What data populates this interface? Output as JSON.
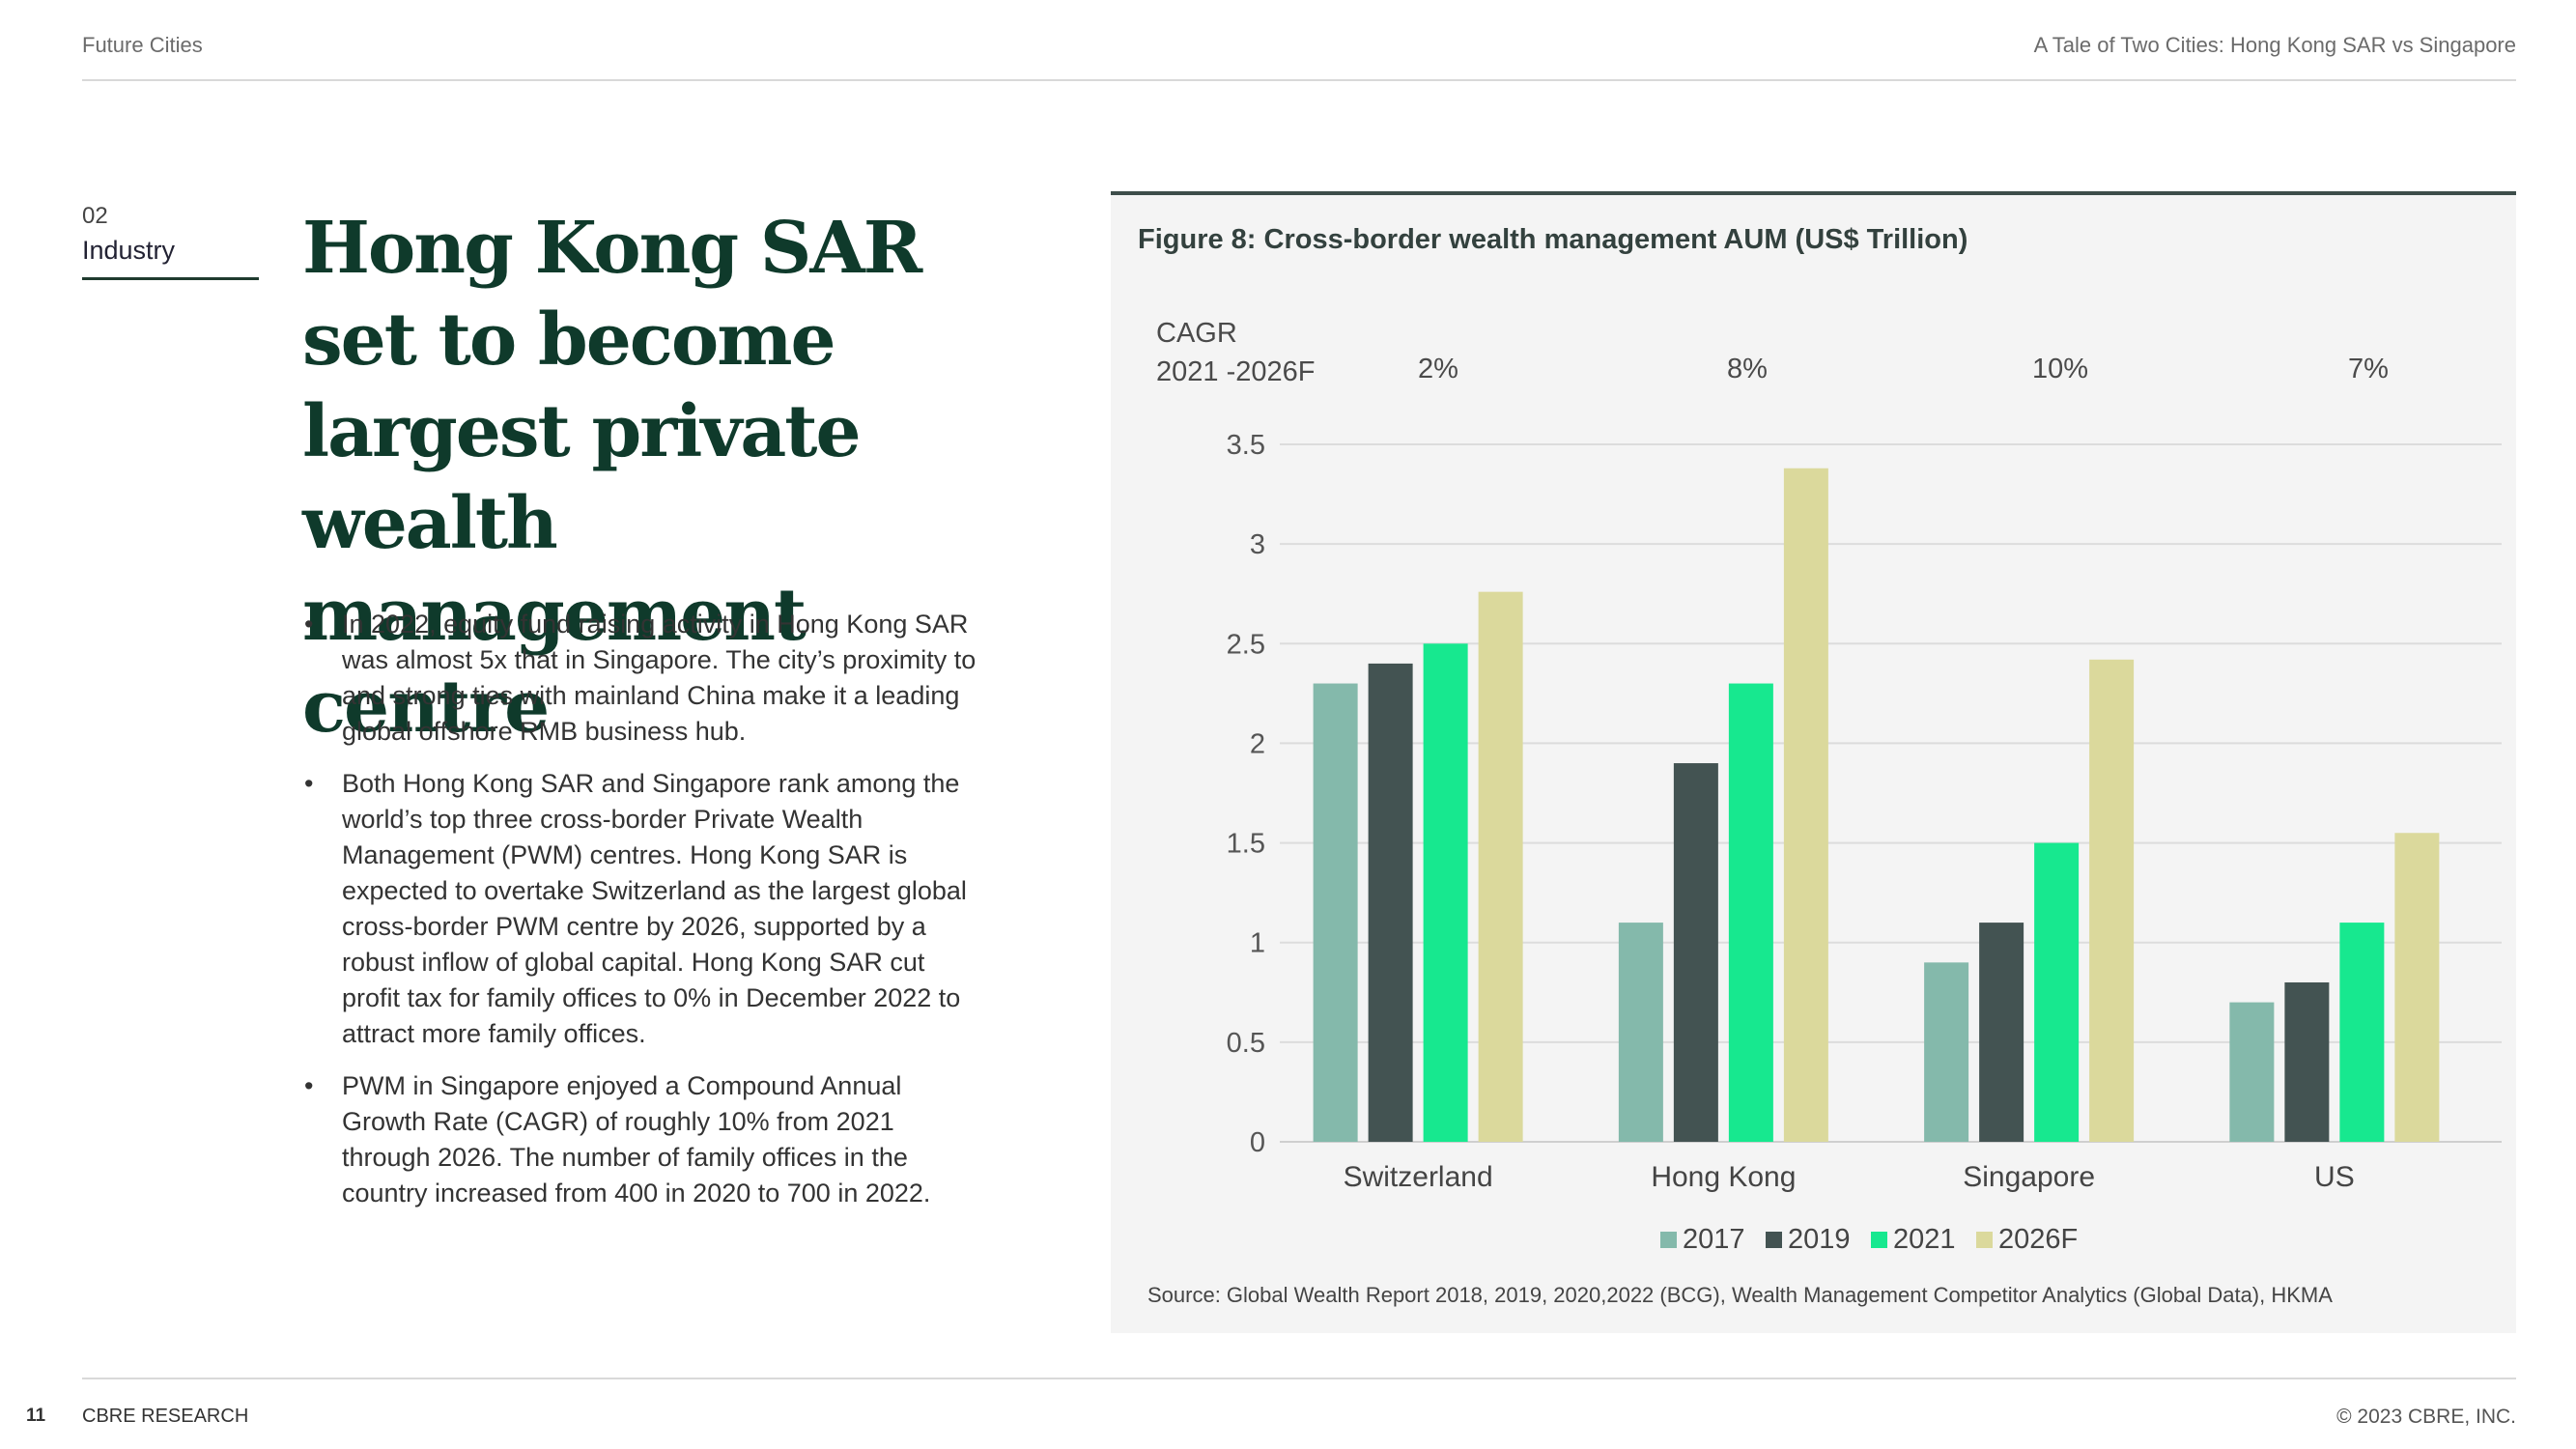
{
  "header": {
    "left": "Future Cities",
    "right": "A Tale of Two Cities: Hong Kong SAR vs Singapore"
  },
  "section": {
    "number": "02",
    "name": "Industry"
  },
  "title": "Hong Kong SAR set to become largest private wealth management centre",
  "bullets": [
    "In 2022, equity fund raising activity in Hong Kong SAR was almost 5x that in Singapore. The city’s proximity to and strong ties with mainland China make it a leading global offshore RMB business hub.",
    "Both Hong Kong SAR and Singapore rank among the world’s top three cross-border Private Wealth Management (PWM) centres. Hong Kong SAR is expected to overtake Switzerland as the largest global cross-border PWM centre by 2026, supported by a robust inflow of global capital. Hong Kong SAR cut profit tax for family offices to 0% in December 2022 to attract more family offices.",
    "PWM in Singapore enjoyed a Compound Annual Growth Rate (CAGR) of roughly 10% from 2021 through 2026. The number of family offices in the country increased from 400 in 2020 to 700 in 2022."
  ],
  "figure": {
    "title": "Figure 8: Cross-border wealth management AUM (US$ Trillion)",
    "cagr_label_line1": "CAGR",
    "cagr_label_line2": "2021 -2026F",
    "cagr_values": [
      "2%",
      "8%",
      "10%",
      "7%"
    ],
    "source": "Source: Global Wealth Report 2018, 2019, 2020,2022 (BCG), Wealth Management Competitor Analytics (Global Data), HKMA"
  },
  "chart_data": {
    "type": "bar",
    "categories": [
      "Switzerland",
      "Hong Kong",
      "Singapore",
      "US"
    ],
    "series": [
      {
        "name": "2017",
        "values": [
          2.3,
          1.1,
          0.9,
          0.7
        ]
      },
      {
        "name": "2019",
        "values": [
          2.4,
          1.9,
          1.1,
          0.8
        ]
      },
      {
        "name": "2021",
        "values": [
          2.5,
          2.3,
          1.5,
          1.1
        ]
      },
      {
        "name": "2026F",
        "values": [
          2.76,
          3.38,
          2.42,
          1.55
        ]
      }
    ],
    "ylim": [
      0,
      3.5
    ],
    "yticks": [
      "0",
      "0.5",
      "1",
      "1.5",
      "2",
      "2.5",
      "3",
      "3.5"
    ],
    "ytick_values": [
      0,
      0.5,
      1,
      1.5,
      2,
      2.5,
      3,
      3.5
    ],
    "grid": true,
    "legend_position": "bottom",
    "colors": [
      "#84b9ab",
      "#435352",
      "#17e88f",
      "#dbd99c"
    ]
  },
  "footer": {
    "page": "11",
    "left": "CBRE RESEARCH",
    "right": "© 2023 CBRE, INC."
  }
}
